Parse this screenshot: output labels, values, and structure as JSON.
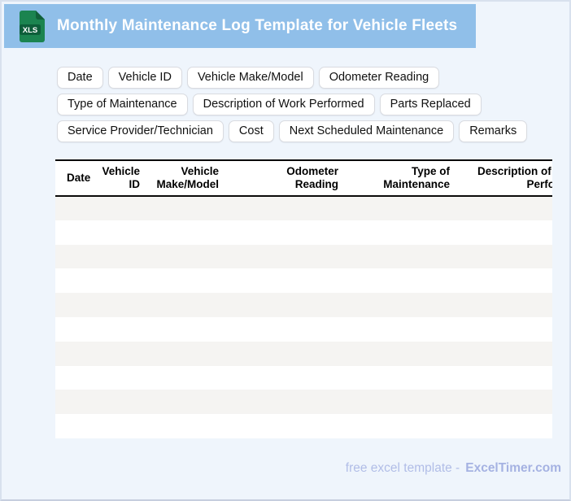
{
  "header": {
    "title": "Monthly Maintenance Log Template for Vehicle Fleets",
    "file_icon_label": "XLS"
  },
  "chips": [
    "Date",
    "Vehicle ID",
    "Vehicle Make/Model",
    "Odometer Reading",
    "Type of Maintenance",
    "Description of Work Performed",
    "Parts Replaced",
    "Service Provider/Technician",
    "Cost",
    "Next Scheduled Maintenance",
    "Remarks"
  ],
  "table": {
    "columns": [
      {
        "label": "Date",
        "lines": [
          "Date"
        ]
      },
      {
        "label": "Vehicle ID",
        "lines": [
          "Vehicle",
          "ID"
        ]
      },
      {
        "label": "Vehicle Make/Model",
        "lines": [
          "Vehicle",
          "Make/Model"
        ]
      },
      {
        "label": "Odometer Reading",
        "lines": [
          "Odometer",
          "Reading"
        ]
      },
      {
        "label": "Type of Maintenance",
        "lines": [
          "Type of",
          "Maintenance"
        ]
      },
      {
        "label": "Description of Work Performed",
        "lines": [
          "Description of Work",
          "Performed"
        ]
      }
    ],
    "row_count": 10
  },
  "footer": {
    "text": "free excel template -",
    "brand": "ExcelTimer.com"
  },
  "colors": {
    "header_bar": "#90BFE9",
    "page_background": "#EFF5FC",
    "row_stripe": "#F5F4F2",
    "table_border": "#0A0A0A",
    "chip_border": "#D9DBE0",
    "footer_text": "#B1BDE7",
    "icon_body_green": "#1B8450",
    "icon_fold_green": "#11603A",
    "icon_badge_green": "#0D5E3A"
  }
}
